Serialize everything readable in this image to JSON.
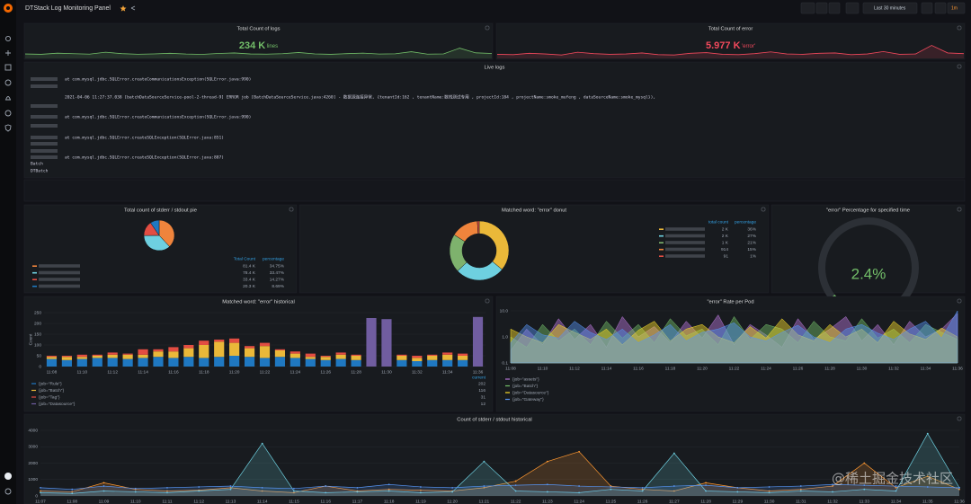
{
  "header": {
    "title": "DTStack Log Monitoring Panel",
    "time_range": "Last 30 minutes",
    "refresh": "1m"
  },
  "live_logs": {
    "title": "Live logs",
    "lines": [
      "at com.mysql.jdbc.SQLError.createCommunicationsException(SQLError.java:990)",
      "2021-04-06 11:27:37.038 [batchDataSourceService-pool-2-thread-9] ERROR job [BatchDataSourceService.java:4260] - 数据源连接异常, {tenantId:162 , tenantName:数栈测试专用 , projectId:184 , projectName:smoke_mufeng , dataSourceName:smoke_mysql}),",
      "at com.mysql.jdbc.SQLError.createCommunicationsException(SQLError.java:990)",
      "at com.mysql.jdbc.SQLError.createSQLException(SQLError.java:851)",
      "at com.mysql.jdbc.SQLError.createSQLException(SQLError.java:887)",
      "Batch",
      "DTBatch"
    ]
  },
  "watermark": "@稀土掘金技术社区",
  "chart_data": [
    {
      "type": "stat",
      "title": "Total Count of logs",
      "value": "234 K",
      "unit": "lines",
      "color": "#73bf69",
      "ylim": [
        0,
        20000
      ],
      "sparkline": [
        5200,
        4800,
        6100,
        5500,
        5000,
        7200,
        5600,
        4900,
        5300,
        6000,
        5100,
        4700,
        5800,
        6400,
        5200,
        5000,
        5500,
        6900,
        5300,
        4800,
        5600,
        6200,
        5100,
        5400,
        7800,
        5000,
        5300,
        12000,
        6500,
        5800
      ]
    },
    {
      "type": "stat",
      "title": "Total Count of error",
      "value": "5.977 K",
      "unit": "'error'",
      "color": "#f2495c",
      "ylim": [
        0,
        500
      ],
      "sparkline": [
        120,
        110,
        150,
        130,
        100,
        180,
        140,
        120,
        130,
        160,
        110,
        100,
        150,
        170,
        120,
        110,
        140,
        190,
        130,
        120,
        150,
        160,
        110,
        130,
        200,
        120,
        130,
        380,
        160,
        140
      ]
    },
    {
      "type": "pie",
      "title": "Total count of stderr / stdout pie",
      "columns": [
        "Total Count",
        "percentage"
      ],
      "values": [
        34.75,
        33.47,
        14.27,
        8.69
      ],
      "value_labels": [
        "34.75%",
        "33.47%",
        "14.27%",
        "8.69%"
      ],
      "totals": [
        {
          "value": 81400,
          "label": "81.4 K"
        },
        {
          "value": 78400,
          "label": "78.4 K"
        },
        {
          "value": 33400,
          "label": "33.4 K"
        },
        {
          "value": 20300,
          "label": "20.3 K"
        }
      ],
      "colors": [
        "#ef843c",
        "#6ed0e0",
        "#e24d42",
        "#1f78c1"
      ]
    },
    {
      "type": "donut",
      "title": "Matched word: \"error\" donut",
      "columns": [
        "total count",
        "percentage"
      ],
      "values": [
        36,
        27,
        21,
        15,
        1
      ],
      "value_labels": [
        "36%",
        "27%",
        "21%",
        "15%",
        "1%"
      ],
      "totals": [
        {
          "value": 2000,
          "label": "2 K"
        },
        {
          "value": 2000,
          "label": "2 K"
        },
        {
          "value": 1000,
          "label": "1 K"
        },
        914,
        91
      ],
      "colors": [
        "#eab839",
        "#6ed0e0",
        "#7eb26d",
        "#ef843c",
        "#e24d42"
      ]
    },
    {
      "type": "gauge",
      "title": "\"error\" Percentage for specified time",
      "value": 2.4,
      "value_label": "2.4%",
      "ylim": [
        0,
        100
      ],
      "color": "#73bf69"
    },
    {
      "type": "bar",
      "title": "Matched word: \"error\" historical",
      "y_label": "Count",
      "legend_header": "current",
      "categories": [
        "11:08",
        null,
        "11:10",
        null,
        "11:12",
        null,
        "11:14",
        null,
        "11:16",
        null,
        "11:18",
        null,
        "11:20",
        null,
        "11:22",
        null,
        "11:24",
        null,
        "11:26",
        null,
        "11:28",
        null,
        "11:30",
        null,
        "11:32",
        null,
        "11:34",
        null,
        "11:36"
      ],
      "ylim": [
        0,
        250
      ],
      "yticks": [
        0,
        50,
        100,
        150,
        200,
        250
      ],
      "series": [
        {
          "name": "{job=\"Rule\"}",
          "color": "#1f78c1",
          "current": 202,
          "values": [
            35,
            30,
            35,
            40,
            40,
            35,
            40,
            45,
            40,
            45,
            40,
            45,
            50,
            45,
            40,
            45,
            40,
            35,
            30,
            35,
            30,
            0,
            0,
            30,
            25,
            30,
            30,
            30,
            0
          ]
        },
        {
          "name": "{job=\"Batch\"}",
          "color": "#eab839",
          "current": 116,
          "values": [
            10,
            15,
            10,
            10,
            15,
            20,
            15,
            25,
            30,
            40,
            60,
            70,
            60,
            40,
            55,
            30,
            20,
            10,
            15,
            20,
            20,
            0,
            0,
            20,
            15,
            20,
            25,
            20,
            0
          ]
        },
        {
          "name": "{job=\"Tag\"}",
          "color": "#e24d42",
          "current": 31,
          "values": [
            5,
            5,
            10,
            5,
            10,
            5,
            25,
            10,
            20,
            15,
            20,
            10,
            20,
            10,
            15,
            5,
            10,
            15,
            5,
            10,
            5,
            0,
            0,
            5,
            10,
            5,
            10,
            10,
            0
          ]
        },
        {
          "name": "{job=\"Datasource\"}",
          "color": "#705da0",
          "current": 12,
          "values": [
            0,
            0,
            0,
            0,
            0,
            0,
            0,
            0,
            0,
            0,
            0,
            0,
            0,
            0,
            0,
            0,
            0,
            0,
            0,
            0,
            0,
            225,
            220,
            0,
            0,
            0,
            0,
            0,
            230
          ]
        }
      ]
    },
    {
      "type": "area",
      "title": "\"error\" Rate per Pod",
      "log_scale": true,
      "categories": [
        "11:08",
        null,
        "11:10",
        null,
        "11:12",
        null,
        "11:14",
        null,
        "11:16",
        null,
        "11:18",
        null,
        "11:20",
        null,
        "11:22",
        null,
        "11:24",
        null,
        "11:26",
        null,
        "11:28",
        null,
        "11:30",
        null,
        "11:32",
        null,
        "11:34",
        null,
        "11:36"
      ],
      "ylim": [
        0.1,
        10
      ],
      "yticks": [
        0.1,
        {
          "value": 1,
          "label": "1.0"
        },
        {
          "value": 10,
          "label": "10.0"
        }
      ],
      "series": [
        {
          "name": "{job=\"assets\"}",
          "color": "#b877d9",
          "values": [
            0.3,
            2,
            0.5,
            5,
            0.8,
            3,
            0.4,
            6,
            1,
            2.5,
            0.6,
            4,
            0.9,
            7,
            0.5,
            3,
            1.2,
            0.4,
            5,
            0.8,
            2,
            6,
            0.7,
            3,
            0.5,
            4,
            1,
            2,
            8
          ]
        },
        {
          "name": "{job=\"Batch\"}",
          "color": "#73bf69",
          "values": [
            1,
            0.4,
            3,
            0.7,
            2,
            0.5,
            4,
            0.9,
            3,
            0.6,
            5,
            1.1,
            2,
            0.5,
            6,
            0.8,
            3,
            2,
            0.6,
            4,
            1,
            0.7,
            5,
            0.9,
            2,
            0.6,
            3,
            1.5,
            0.8
          ]
        },
        {
          "name": "{job=\"Datasource\"}",
          "color": "#fade2a",
          "values": [
            2,
            1,
            0.6,
            3,
            1.5,
            0.8,
            2,
            0.5,
            1.8,
            4,
            0.7,
            2,
            3,
            1,
            0.6,
            2.5,
            0.9,
            5,
            1.2,
            0.7,
            3,
            1,
            2,
            0.6,
            4,
            1.3,
            0.8,
            2.2,
            1
          ]
        },
        {
          "name": "{job=\"Gateway\"}",
          "color": "#5794f2",
          "values": [
            0.6,
            3,
            1.2,
            0.9,
            4,
            1.5,
            0.8,
            2,
            0.6,
            1.2,
            3,
            0.7,
            1.5,
            2,
            3.5,
            1,
            0.7,
            1.5,
            2.8,
            1,
            0.6,
            2,
            3,
            1.4,
            0.8,
            2,
            4,
            0.9,
            10
          ]
        }
      ]
    },
    {
      "type": "line",
      "title": "Count of stderr / stdout historical",
      "categories": [
        "11:07",
        "11:08",
        "11:09",
        "11:10",
        "11:11",
        "11:12",
        "11:13",
        "11:14",
        "11:15",
        "11:16",
        "11:17",
        "11:18",
        "11:19",
        "11:20",
        "11:21",
        "11:22",
        "11:23",
        "11:24",
        "11:25",
        "11:26",
        "11:27",
        "11:28",
        "11:29",
        "11:30",
        "11:31",
        "11:32",
        "11:33",
        "11:34",
        "11:35",
        "11:36"
      ],
      "ylim": [
        0,
        4000
      ],
      "yticks": [
        0,
        1000,
        2000,
        3000,
        4000
      ],
      "series": [
        {
          "color": "#ff9830",
          "values": [
            300,
            250,
            800,
            400,
            300,
            350,
            500,
            300,
            200,
            600,
            300,
            400,
            350,
            300,
            500,
            900,
            2100,
            2700,
            600,
            400,
            300,
            800,
            500,
            300,
            400,
            600,
            2000,
            500,
            1200,
            400
          ]
        },
        {
          "color": "#6ed0e0",
          "values": [
            200,
            150,
            300,
            250,
            200,
            300,
            400,
            3200,
            300,
            200,
            250,
            300,
            200,
            250,
            2100,
            300,
            250,
            200,
            400,
            300,
            2600,
            300,
            250,
            200,
            300,
            250,
            400,
            300,
            3800,
            500
          ]
        },
        {
          "color": "#5794f2",
          "values": [
            500,
            400,
            600,
            450,
            500,
            550,
            600,
            500,
            450,
            600,
            500,
            700,
            550,
            500,
            600,
            650,
            700,
            600,
            550,
            500,
            600,
            650,
            500,
            550,
            600,
            700,
            650,
            600,
            550,
            500
          ]
        }
      ]
    }
  ]
}
